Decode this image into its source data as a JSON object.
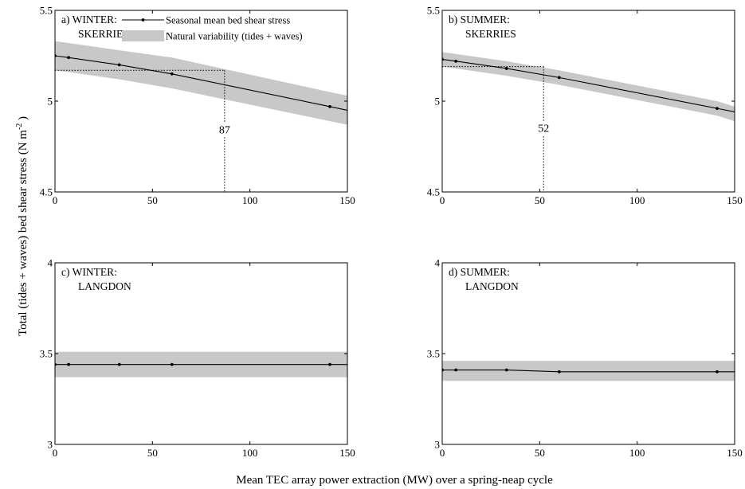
{
  "figure": {
    "xlabel": "Mean TEC array power extraction (MW) over a spring-neap cycle",
    "ylabel": "Total (tides + waves) bed shear stress (N m",
    "ylabel_sup": "-2",
    "ylabel_end": " )",
    "legend": {
      "line_label": "Seasonal mean bed shear stress",
      "band_label": "Natural variability (tides + waves)"
    },
    "colors": {
      "band": "#c8c8c8",
      "line": "#000000",
      "background": "#ffffff"
    }
  },
  "chart_data": [
    {
      "type": "line",
      "panel": "a",
      "title_line1": "a)  WINTER:",
      "title_line2": "SKERRIES",
      "xlim": [
        0,
        150
      ],
      "ylim": [
        4.5,
        5.5
      ],
      "xticks": [
        0,
        50,
        100,
        150
      ],
      "yticks": [
        4.5,
        5,
        5.5
      ],
      "x": [
        0,
        7,
        33,
        60,
        141
      ],
      "y": [
        5.25,
        5.24,
        5.2,
        5.15,
        4.97
      ],
      "band_x": [
        0,
        7,
        33,
        60,
        141,
        150
      ],
      "band_upper": [
        5.33,
        5.32,
        5.28,
        5.24,
        5.05,
        5.03
      ],
      "band_lower": [
        5.17,
        5.16,
        5.12,
        5.07,
        4.89,
        4.87
      ],
      "threshold_x": 87,
      "threshold_y": 5.17,
      "threshold_label": "87",
      "legend": true
    },
    {
      "type": "line",
      "panel": "b",
      "title_line1": "b)  SUMMER:",
      "title_line2": "SKERRIES",
      "xlim": [
        0,
        150
      ],
      "ylim": [
        4.5,
        5.5
      ],
      "xticks": [
        0,
        50,
        100,
        150
      ],
      "yticks": [
        4.5,
        5,
        5.5
      ],
      "x": [
        0,
        7,
        33,
        60,
        141
      ],
      "y": [
        5.23,
        5.22,
        5.18,
        5.13,
        4.96
      ],
      "band_x": [
        0,
        7,
        33,
        60,
        141,
        150
      ],
      "band_upper": [
        5.27,
        5.26,
        5.22,
        5.17,
        5.0,
        4.97
      ],
      "band_lower": [
        5.19,
        5.18,
        5.14,
        5.09,
        4.92,
        4.89
      ],
      "threshold_x": 52,
      "threshold_y": 5.19,
      "threshold_label": "52",
      "legend": false
    },
    {
      "type": "line",
      "panel": "c",
      "title_line1": "c)  WINTER:",
      "title_line2": "LANGDON",
      "xlim": [
        0,
        150
      ],
      "ylim": [
        3,
        4
      ],
      "xticks": [
        0,
        50,
        100,
        150
      ],
      "yticks": [
        3,
        3.5,
        4
      ],
      "x": [
        0,
        7,
        33,
        60,
        141
      ],
      "y": [
        3.44,
        3.44,
        3.44,
        3.44,
        3.44
      ],
      "band_x": [
        0,
        150
      ],
      "band_upper": [
        3.51,
        3.51
      ],
      "band_lower": [
        3.37,
        3.37
      ],
      "legend": false
    },
    {
      "type": "line",
      "panel": "d",
      "title_line1": "d)  SUMMER:",
      "title_line2": "LANGDON",
      "xlim": [
        0,
        150
      ],
      "ylim": [
        3,
        4
      ],
      "xticks": [
        0,
        50,
        100,
        150
      ],
      "yticks": [
        3,
        3.5,
        4
      ],
      "x": [
        0,
        7,
        33,
        60,
        141
      ],
      "y": [
        3.41,
        3.41,
        3.41,
        3.4,
        3.4
      ],
      "band_x": [
        0,
        150
      ],
      "band_upper": [
        3.46,
        3.46
      ],
      "band_lower": [
        3.35,
        3.35
      ],
      "legend": false
    }
  ]
}
